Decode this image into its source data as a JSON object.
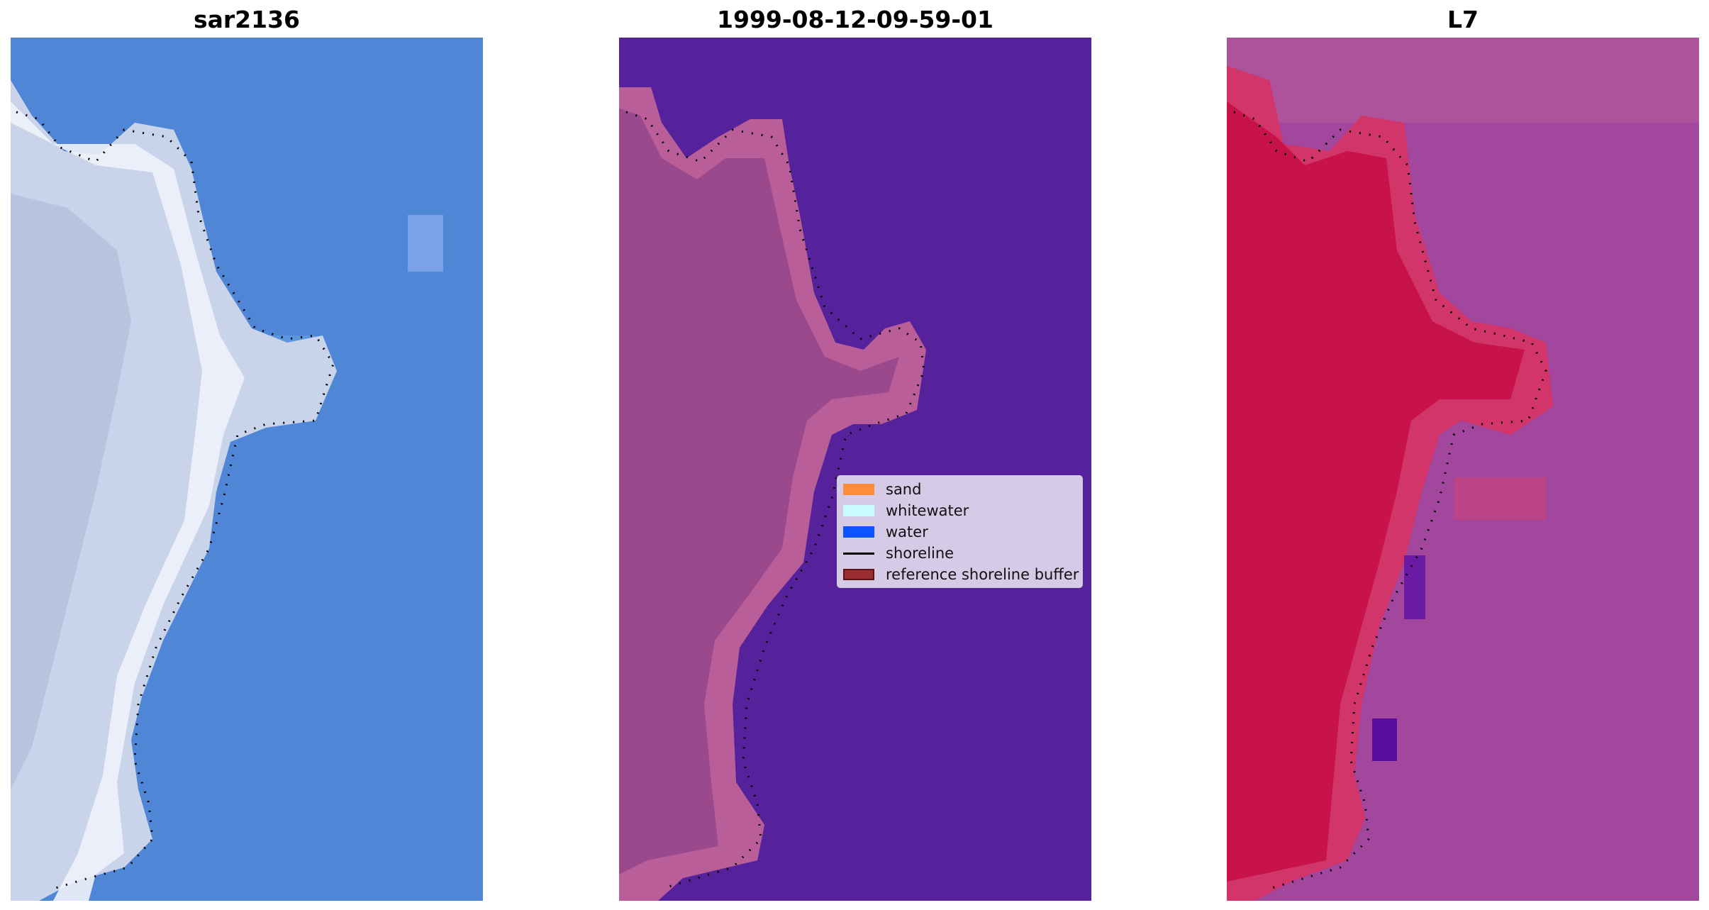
{
  "panels": {
    "rgb": {
      "title": "sar2136"
    },
    "classified": {
      "title": "1999-08-12-09-59-01"
    },
    "mndwi": {
      "title": "L7"
    }
  },
  "legend": {
    "items": [
      {
        "label": "sand",
        "color": "#ff8c3a",
        "kind": "patch"
      },
      {
        "label": "whitewater",
        "color": "#c8fbff",
        "kind": "patch"
      },
      {
        "label": "water",
        "color": "#0a55ff",
        "kind": "patch"
      },
      {
        "label": "shoreline",
        "color": "#000000",
        "kind": "line"
      },
      {
        "label": "reference shoreline buffer",
        "color": "#9b2c30",
        "kind": "patch"
      }
    ]
  },
  "colors": {
    "water_class": "#55229b",
    "land_class": "#9a4a8c",
    "rgb_water": "#4f87d6",
    "rgb_land": "#c9d3ea",
    "mndwi_land": "#c8134a",
    "mndwi_water": "#a2469e"
  }
}
